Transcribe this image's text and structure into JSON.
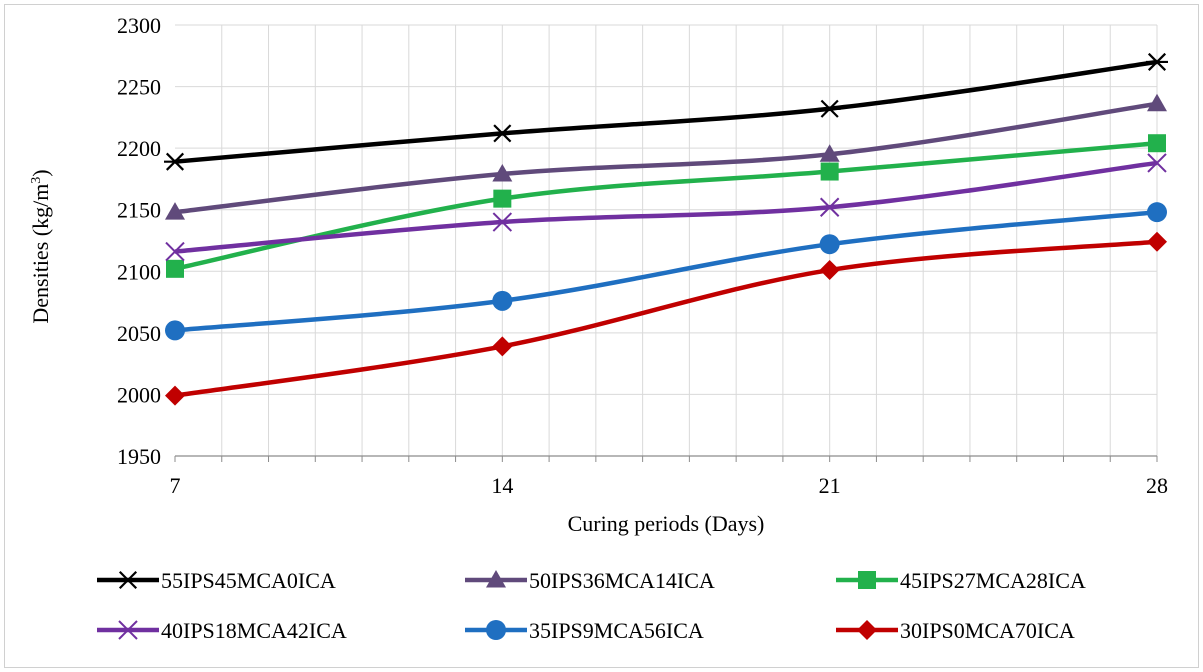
{
  "chart_data": {
    "type": "line",
    "title": "",
    "xlabel": "Curing periods (Days)",
    "ylabel_main": "Densities (kg/m",
    "ylabel_sup": "3",
    "ylabel_close": ")",
    "x": [
      7,
      14,
      21,
      28
    ],
    "x_tick_labels": [
      "7",
      "14",
      "21",
      "28"
    ],
    "xlim": [
      7,
      28
    ],
    "ylim": [
      1950,
      2300
    ],
    "y_ticks": [
      1950,
      2000,
      2050,
      2100,
      2150,
      2200,
      2250,
      2300
    ],
    "y_tick_labels": [
      "1950",
      "2000",
      "2050",
      "2100",
      "2150",
      "2200",
      "2250",
      "2300"
    ],
    "grid": true,
    "legend_position": "bottom",
    "series": [
      {
        "name": "55IPS45MCA0ICA",
        "values": [
          2189,
          2212,
          2232,
          2270
        ],
        "color": "#000000",
        "marker": "asterisk"
      },
      {
        "name": "50IPS36MCA14ICA",
        "values": [
          2148,
          2179,
          2195,
          2236
        ],
        "color": "#604a7b",
        "marker": "triangle"
      },
      {
        "name": "45IPS27MCA28ICA",
        "values": [
          2102,
          2159,
          2181,
          2204
        ],
        "color": "#22b14c",
        "marker": "square"
      },
      {
        "name": "40IPS18MCA42ICA",
        "values": [
          2116,
          2140,
          2152,
          2188
        ],
        "color": "#7030a0",
        "marker": "x"
      },
      {
        "name": "35IPS9MCA56ICA",
        "values": [
          2052,
          2076,
          2122,
          2148
        ],
        "color": "#1f6fc1",
        "marker": "circle"
      },
      {
        "name": "30IPS0MCA70ICA",
        "values": [
          1999,
          2039,
          2101,
          2124
        ],
        "color": "#c00000",
        "marker": "diamond"
      }
    ]
  }
}
